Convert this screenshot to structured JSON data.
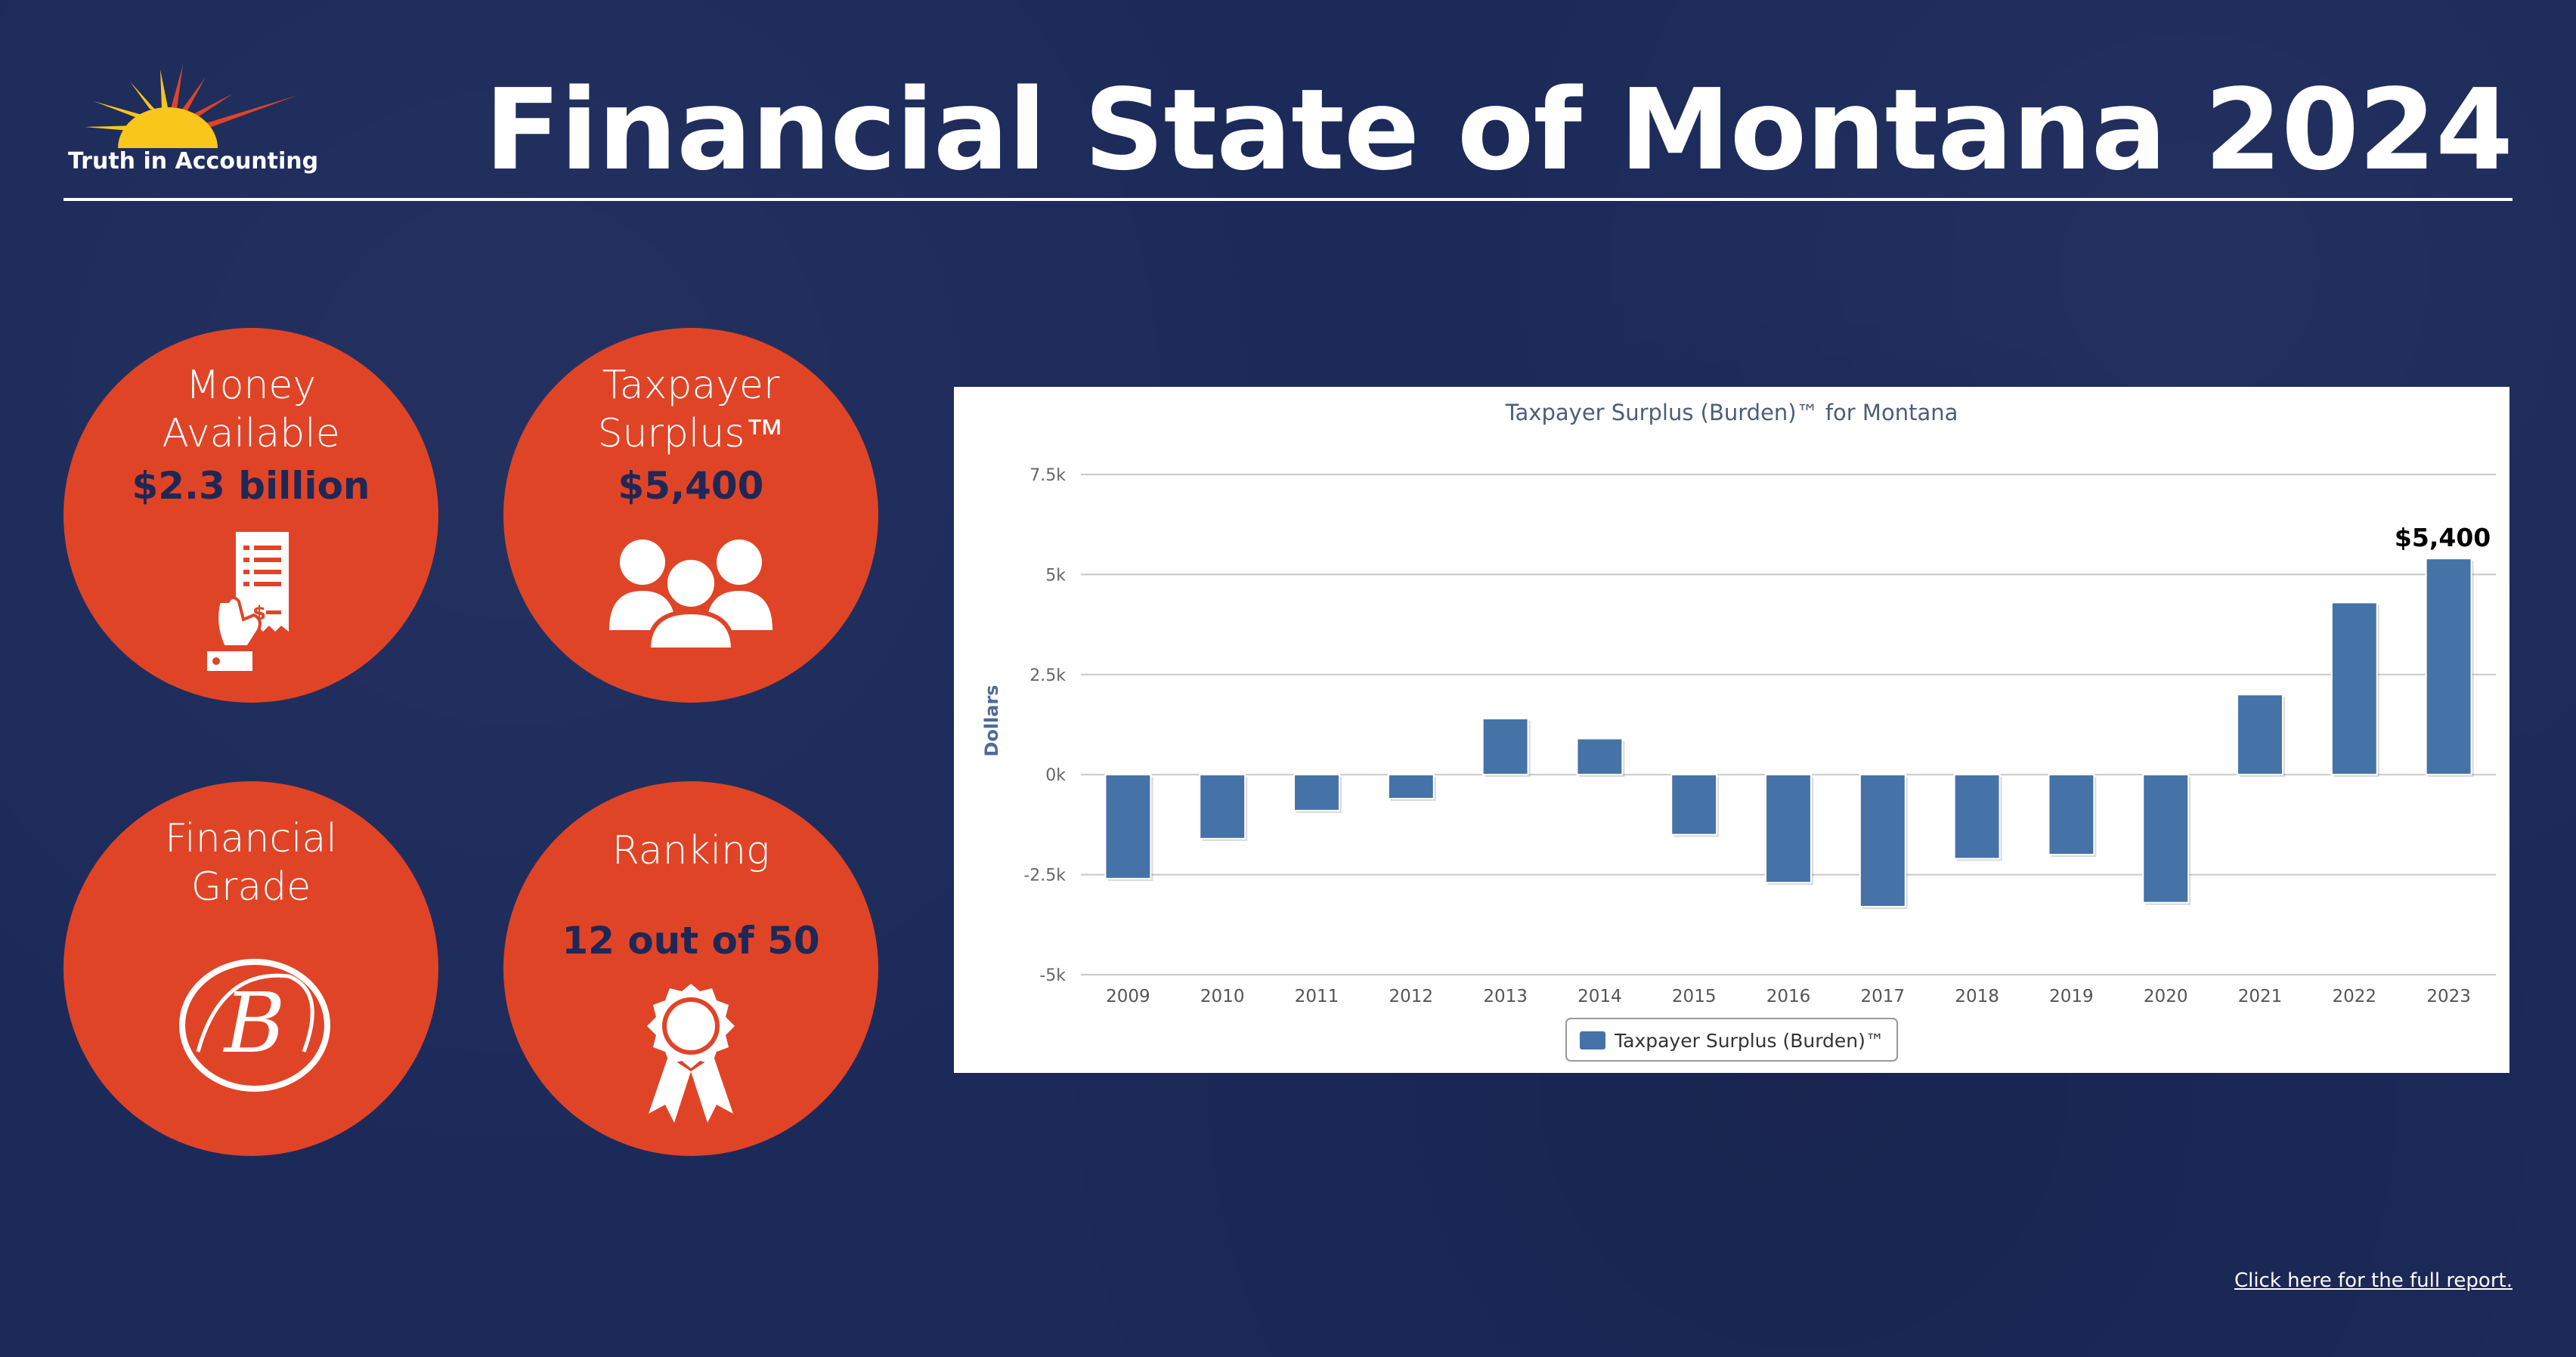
{
  "brand": {
    "name": "Truth in Accounting",
    "logo_colors": [
      "#f9c61b",
      "#e04427"
    ]
  },
  "title": "Financial State of Montana 2024",
  "stats": [
    {
      "label_lines": [
        "Money",
        "Available"
      ],
      "value": "$2.3 billion",
      "icon": "receipt-hand-icon"
    },
    {
      "label_lines": [
        "Taxpayer",
        "Surplus™"
      ],
      "value": "$5,400",
      "icon": "people-group-icon"
    },
    {
      "label_lines": [
        "Financial",
        "Grade"
      ],
      "value": "B",
      "icon": "grade-circle-icon"
    },
    {
      "label_lines": [
        "Ranking"
      ],
      "value": "12 out of 50",
      "icon": "award-ribbon-icon"
    }
  ],
  "colors": {
    "background": "#1c2a5a",
    "circle": "#e04427",
    "dark_text": "#1f2756",
    "bar": "#4572a7"
  },
  "chart_data": {
    "type": "bar",
    "title": "Taxpayer Surplus (Burden)™ for Montana",
    "ylabel": "Dollars",
    "xlabel": "",
    "categories": [
      "2009",
      "2010",
      "2011",
      "2012",
      "2013",
      "2014",
      "2015",
      "2016",
      "2017",
      "2018",
      "2019",
      "2020",
      "2021",
      "2022",
      "2023"
    ],
    "series": [
      {
        "name": "Taxpayer Surplus (Burden)™",
        "values": [
          -2600,
          -1600,
          -900,
          -600,
          1400,
          900,
          -1500,
          -2700,
          -3300,
          -2100,
          -2000,
          -3200,
          2000,
          4300,
          5400
        ]
      }
    ],
    "ylim": [
      -5000,
      7500
    ],
    "yticks": [
      -5000,
      -2500,
      0,
      2500,
      5000,
      7500
    ],
    "ytick_labels": [
      "-5k",
      "-2.5k",
      "0k",
      "2.5k",
      "5k",
      "7.5k"
    ],
    "data_labels": [
      {
        "category": "2023",
        "text": "$5,400"
      }
    ],
    "grid": true,
    "legend": "bottom-center"
  },
  "footer": {
    "link_text": "Click here for the full report."
  }
}
